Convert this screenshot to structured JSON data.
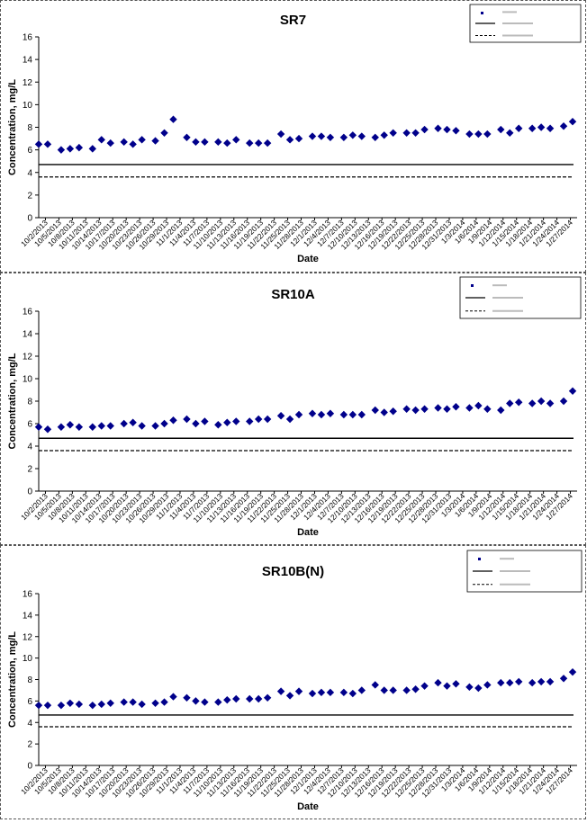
{
  "date_ticks": [
    "10/2/2013",
    "10/5/2013",
    "10/8/2013",
    "10/11/2013",
    "10/14/2013",
    "10/17/2013",
    "10/20/2013",
    "10/23/2013",
    "10/26/2013",
    "10/29/2013",
    "11/1/2013",
    "11/4/2013",
    "11/7/2013",
    "11/10/2013",
    "11/13/2013",
    "11/16/2013",
    "11/19/2013",
    "11/22/2013",
    "11/25/2013",
    "11/28/2013",
    "12/1/2013",
    "12/4/2013",
    "12/7/2013",
    "12/10/2013",
    "12/13/2013",
    "12/16/2013",
    "12/19/2013",
    "12/22/2013",
    "12/25/2013",
    "12/28/2013",
    "12/31/2013",
    "1/3/2014",
    "1/6/2014",
    "1/9/2014",
    "1/12/2014",
    "1/15/2014",
    "1/18/2014",
    "1/21/2014",
    "1/24/2014",
    "1/27/2014"
  ],
  "chart_data": [
    {
      "type": "scatter",
      "title": "SR7",
      "xlabel": "Date",
      "ylabel": "Concentration, mg/L",
      "ylim": [
        0,
        16
      ],
      "yticks": [
        0,
        2,
        4,
        6,
        8,
        10,
        12,
        14,
        16
      ],
      "xlim": [
        "2013-10-02",
        "2014-01-30"
      ],
      "grid": false,
      "legend": "top-right",
      "marker_color": "#00008B",
      "reference_lines": [
        {
          "y": 4.7,
          "style": "solid"
        },
        {
          "y": 3.6,
          "style": "dashed"
        }
      ],
      "series": [
        {
          "x": [
            "2013-10-02",
            "2013-10-04",
            "2013-10-07",
            "2013-10-09",
            "2013-10-11",
            "2013-10-14",
            "2013-10-16",
            "2013-10-18",
            "2013-10-21",
            "2013-10-23",
            "2013-10-25",
            "2013-10-28",
            "2013-10-30",
            "2013-11-01",
            "2013-11-04",
            "2013-11-06",
            "2013-11-08",
            "2013-11-11",
            "2013-11-13",
            "2013-11-15",
            "2013-11-18",
            "2013-11-20",
            "2013-11-22",
            "2013-11-25",
            "2013-11-27",
            "2013-11-29",
            "2013-12-02",
            "2013-12-04",
            "2013-12-06",
            "2013-12-09",
            "2013-12-11",
            "2013-12-13",
            "2013-12-16",
            "2013-12-18",
            "2013-12-20",
            "2013-12-23",
            "2013-12-25",
            "2013-12-27",
            "2013-12-30",
            "2014-01-01",
            "2014-01-03",
            "2014-01-06",
            "2014-01-08",
            "2014-01-10",
            "2014-01-13",
            "2014-01-15",
            "2014-01-17",
            "2014-01-20",
            "2014-01-22",
            "2014-01-24",
            "2014-01-27",
            "2014-01-29"
          ],
          "y": [
            6.5,
            6.5,
            6.0,
            6.1,
            6.2,
            6.1,
            6.9,
            6.6,
            6.7,
            6.5,
            6.9,
            6.8,
            7.5,
            8.7,
            7.1,
            6.7,
            6.7,
            6.7,
            6.6,
            6.9,
            6.6,
            6.6,
            6.6,
            7.4,
            6.9,
            7.0,
            7.2,
            7.2,
            7.1,
            7.1,
            7.3,
            7.2,
            7.1,
            7.3,
            7.5,
            7.5,
            7.5,
            7.8,
            7.9,
            7.8,
            7.7,
            7.4,
            7.4,
            7.4,
            7.8,
            7.5,
            7.9,
            7.9,
            8.0,
            7.9,
            8.1,
            8.5
          ]
        }
      ]
    },
    {
      "type": "scatter",
      "title": "SR10A",
      "xlabel": "Date",
      "ylabel": "Concentration, mg/L",
      "ylim": [
        0,
        16
      ],
      "yticks": [
        0,
        2,
        4,
        6,
        8,
        10,
        12,
        14,
        16
      ],
      "xlim": [
        "2013-10-02",
        "2014-01-30"
      ],
      "grid": false,
      "legend": "top-right",
      "marker_color": "#00008B",
      "reference_lines": [
        {
          "y": 4.7,
          "style": "solid"
        },
        {
          "y": 3.6,
          "style": "dashed"
        }
      ],
      "series": [
        {
          "x": [
            "2013-10-02",
            "2013-10-04",
            "2013-10-07",
            "2013-10-09",
            "2013-10-11",
            "2013-10-14",
            "2013-10-16",
            "2013-10-18",
            "2013-10-21",
            "2013-10-23",
            "2013-10-25",
            "2013-10-28",
            "2013-10-30",
            "2013-11-01",
            "2013-11-04",
            "2013-11-06",
            "2013-11-08",
            "2013-11-11",
            "2013-11-13",
            "2013-11-15",
            "2013-11-18",
            "2013-11-20",
            "2013-11-22",
            "2013-11-25",
            "2013-11-27",
            "2013-11-29",
            "2013-12-02",
            "2013-12-04",
            "2013-12-06",
            "2013-12-09",
            "2013-12-11",
            "2013-12-13",
            "2013-12-16",
            "2013-12-18",
            "2013-12-20",
            "2013-12-23",
            "2013-12-25",
            "2013-12-27",
            "2013-12-30",
            "2014-01-01",
            "2014-01-03",
            "2014-01-06",
            "2014-01-08",
            "2014-01-10",
            "2014-01-13",
            "2014-01-15",
            "2014-01-17",
            "2014-01-20",
            "2014-01-22",
            "2014-01-24",
            "2014-01-27",
            "2014-01-29"
          ],
          "y": [
            5.7,
            5.5,
            5.7,
            5.9,
            5.7,
            5.7,
            5.8,
            5.8,
            6.0,
            6.1,
            5.8,
            5.8,
            6.0,
            6.3,
            6.4,
            6.0,
            6.2,
            5.9,
            6.1,
            6.2,
            6.2,
            6.4,
            6.4,
            6.7,
            6.4,
            6.8,
            6.9,
            6.8,
            6.9,
            6.8,
            6.8,
            6.8,
            7.2,
            7.0,
            7.1,
            7.3,
            7.2,
            7.3,
            7.4,
            7.3,
            7.5,
            7.4,
            7.6,
            7.3,
            7.2,
            7.8,
            7.9,
            7.8,
            8.0,
            7.8,
            8.0,
            8.9
          ]
        }
      ]
    },
    {
      "type": "scatter",
      "title": "SR10B(N)",
      "xlabel": "Date",
      "ylabel": "Concentration, mg/L",
      "ylim": [
        0,
        16
      ],
      "yticks": [
        0,
        2,
        4,
        6,
        8,
        10,
        12,
        14,
        16
      ],
      "xlim": [
        "2013-10-02",
        "2014-01-30"
      ],
      "grid": false,
      "legend": "top-right",
      "marker_color": "#00008B",
      "reference_lines": [
        {
          "y": 4.7,
          "style": "solid"
        },
        {
          "y": 3.6,
          "style": "dashed"
        }
      ],
      "series": [
        {
          "x": [
            "2013-10-02",
            "2013-10-04",
            "2013-10-07",
            "2013-10-09",
            "2013-10-11",
            "2013-10-14",
            "2013-10-16",
            "2013-10-18",
            "2013-10-21",
            "2013-10-23",
            "2013-10-25",
            "2013-10-28",
            "2013-10-30",
            "2013-11-01",
            "2013-11-04",
            "2013-11-06",
            "2013-11-08",
            "2013-11-11",
            "2013-11-13",
            "2013-11-15",
            "2013-11-18",
            "2013-11-20",
            "2013-11-22",
            "2013-11-25",
            "2013-11-27",
            "2013-11-29",
            "2013-12-02",
            "2013-12-04",
            "2013-12-06",
            "2013-12-09",
            "2013-12-11",
            "2013-12-13",
            "2013-12-16",
            "2013-12-18",
            "2013-12-20",
            "2013-12-23",
            "2013-12-25",
            "2013-12-27",
            "2013-12-30",
            "2014-01-01",
            "2014-01-03",
            "2014-01-06",
            "2014-01-08",
            "2014-01-10",
            "2014-01-13",
            "2014-01-15",
            "2014-01-17",
            "2014-01-20",
            "2014-01-22",
            "2014-01-24",
            "2014-01-27",
            "2014-01-29"
          ],
          "y": [
            5.6,
            5.6,
            5.6,
            5.8,
            5.7,
            5.6,
            5.7,
            5.8,
            5.9,
            5.9,
            5.7,
            5.8,
            5.9,
            6.4,
            6.3,
            6.0,
            5.9,
            5.9,
            6.1,
            6.2,
            6.2,
            6.2,
            6.3,
            6.9,
            6.5,
            6.9,
            6.7,
            6.8,
            6.8,
            6.8,
            6.7,
            7.0,
            7.5,
            7.0,
            7.0,
            7.0,
            7.1,
            7.4,
            7.7,
            7.4,
            7.6,
            7.3,
            7.2,
            7.5,
            7.7,
            7.7,
            7.8,
            7.7,
            7.8,
            7.8,
            8.1,
            8.7
          ]
        }
      ]
    }
  ]
}
